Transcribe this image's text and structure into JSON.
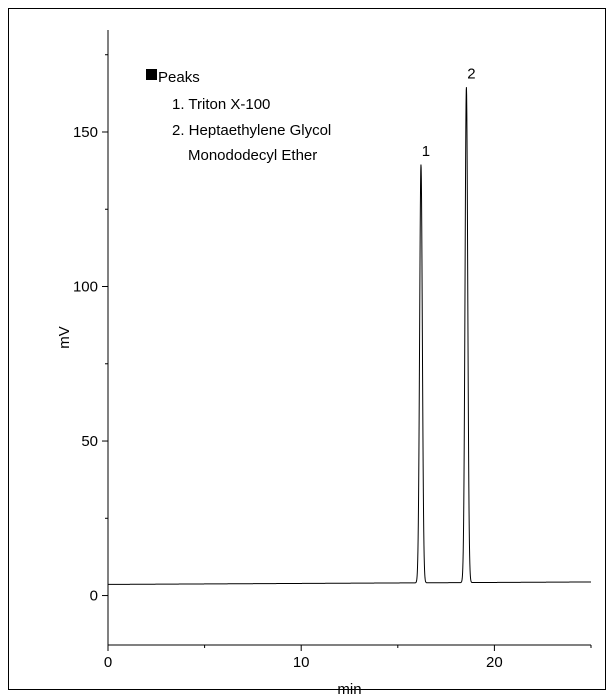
{
  "chart_data": {
    "type": "line",
    "xlabel": "min",
    "ylabel": "mV",
    "xlim": [
      0,
      25
    ],
    "ylim": [
      -16,
      183
    ],
    "x_ticks": [
      0,
      10,
      20
    ],
    "y_ticks": [
      0,
      50,
      100,
      150
    ],
    "x_tick_labels": [
      "0",
      "10",
      "20"
    ],
    "y_tick_labels": [
      "0",
      "50",
      "100",
      "150"
    ],
    "baseline": 3.6,
    "series": [
      {
        "peaks": [
          {
            "label": "1",
            "x": 16.2,
            "y": 139
          },
          {
            "label": "2",
            "x": 18.55,
            "y": 164
          }
        ]
      }
    ],
    "legend": {
      "title": "Peaks",
      "items": [
        "1. Triton X-100",
        "2. Heptaethylene Glycol",
        "Monododecyl Ether"
      ],
      "placement": "top-left"
    },
    "grid": false
  },
  "colors": {
    "line": "#000000",
    "legend_marker": "#000000"
  }
}
